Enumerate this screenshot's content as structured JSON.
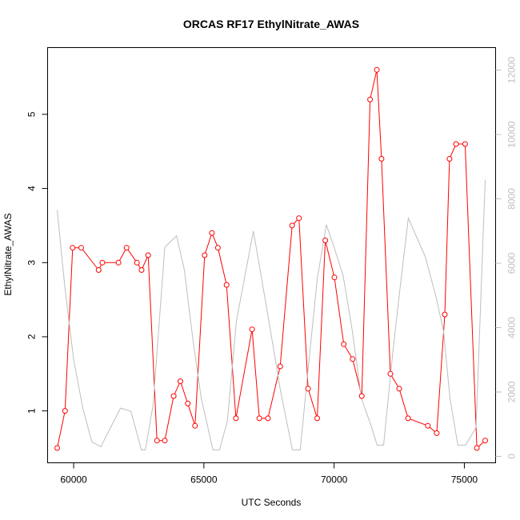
{
  "chart_data": {
    "type": "line",
    "title": "ORCAS RF17 EthylNitrate_AWAS",
    "xlabel": "UTC Seconds",
    "ylabel": "EthylNitrate_AWAS",
    "xlim": [
      59000,
      76200
    ],
    "ylim": [
      0.3,
      5.9
    ],
    "y2lim": [
      -200,
      12700
    ],
    "x_ticks": [
      60000,
      65000,
      70000,
      75000
    ],
    "y_ticks": [
      1,
      2,
      3,
      4,
      5
    ],
    "y2_ticks": [
      0,
      2000,
      4000,
      6000,
      8000,
      10000,
      12000
    ],
    "grid": false,
    "legend": "none",
    "colors": {
      "primary_series": "#ff0000",
      "secondary_series": "#bebebe",
      "axes": "#000000",
      "right_axis": "#bebebe"
    },
    "series": [
      {
        "axis": "left",
        "marker": "open-circle",
        "x": [
          59370,
          59670,
          59960,
          60290,
          60960,
          61100,
          61720,
          62030,
          62430,
          62610,
          62860,
          63200,
          63500,
          63840,
          64100,
          64380,
          64660,
          65030,
          65310,
          65540,
          65870,
          66230,
          66850,
          67130,
          67460,
          67930,
          68390,
          68650,
          69000,
          69350,
          69660,
          70010,
          70370,
          70710,
          71060,
          71380,
          71640,
          71820,
          72160,
          72500,
          72840,
          73600,
          73940,
          74250,
          74430,
          74680,
          75030,
          75480,
          75800
        ],
        "y": [
          0.5,
          1.0,
          3.2,
          3.2,
          2.9,
          3.0,
          3.0,
          3.2,
          3.0,
          2.9,
          3.1,
          0.6,
          0.6,
          1.2,
          1.4,
          1.1,
          0.8,
          3.1,
          3.4,
          3.2,
          2.7,
          0.9,
          2.1,
          0.9,
          0.9,
          1.6,
          3.5,
          3.6,
          1.3,
          0.9,
          3.3,
          2.8,
          1.9,
          1.7,
          1.2,
          5.2,
          5.6,
          4.4,
          1.5,
          1.3,
          0.9,
          0.8,
          0.7,
          2.3,
          4.4,
          4.6,
          4.6,
          0.5,
          0.6
        ]
      },
      {
        "axis": "right",
        "marker": "none",
        "x": [
          59370,
          59670,
          60000,
          60350,
          60700,
          61050,
          61200,
          61800,
          62200,
          62600,
          62750,
          63050,
          63500,
          63950,
          64250,
          64600,
          64900,
          65350,
          65600,
          65900,
          66250,
          66900,
          67200,
          67600,
          67950,
          68400,
          68700,
          69000,
          69350,
          69700,
          70000,
          70350,
          70700,
          71050,
          71400,
          71650,
          71900,
          72250,
          72500,
          72850,
          73500,
          73900,
          74200,
          74450,
          74750,
          75050,
          75450,
          75800
        ],
        "y": [
          7650,
          5200,
          3000,
          1500,
          450,
          300,
          550,
          1500,
          1400,
          200,
          200,
          1600,
          6500,
          6850,
          5800,
          3500,
          1800,
          200,
          200,
          1100,
          4200,
          7000,
          5600,
          3700,
          2000,
          200,
          200,
          2700,
          5500,
          7200,
          6500,
          5600,
          3900,
          1800,
          1000,
          350,
          350,
          3200,
          5000,
          7400,
          6200,
          5000,
          3900,
          1800,
          350,
          350,
          900,
          8600
        ]
      }
    ]
  }
}
